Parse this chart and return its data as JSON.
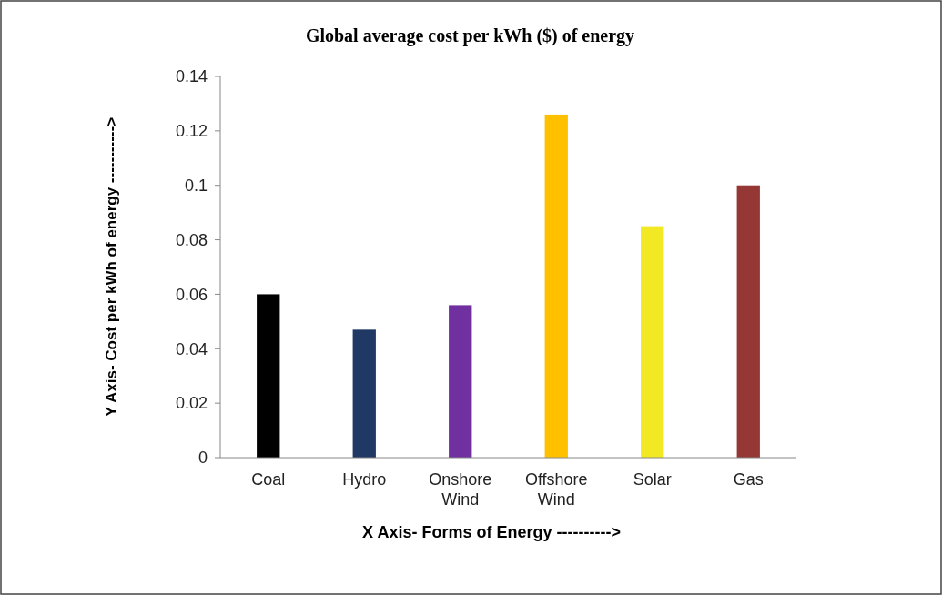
{
  "chart_data": {
    "type": "bar",
    "title": "Global average cost per kWh ($) of energy",
    "xlabel": "X Axis- Forms of Energy ---------->",
    "ylabel": "Y Axis- Cost per kWh of energy ----------->",
    "categories": [
      "Coal",
      "Hydro",
      "Onshore Wind",
      "Offshore Wind",
      "Solar",
      "Gas"
    ],
    "values": [
      0.06,
      0.047,
      0.056,
      0.126,
      0.085,
      0.1
    ],
    "colors": [
      "#000000",
      "#1f3864",
      "#7030a0",
      "#ffc000",
      "#f2e824",
      "#953735"
    ],
    "ylim": [
      0,
      0.14
    ],
    "yticks": [
      0,
      0.02,
      0.04,
      0.06,
      0.08,
      0.1,
      0.12,
      0.14
    ],
    "grid": false
  }
}
